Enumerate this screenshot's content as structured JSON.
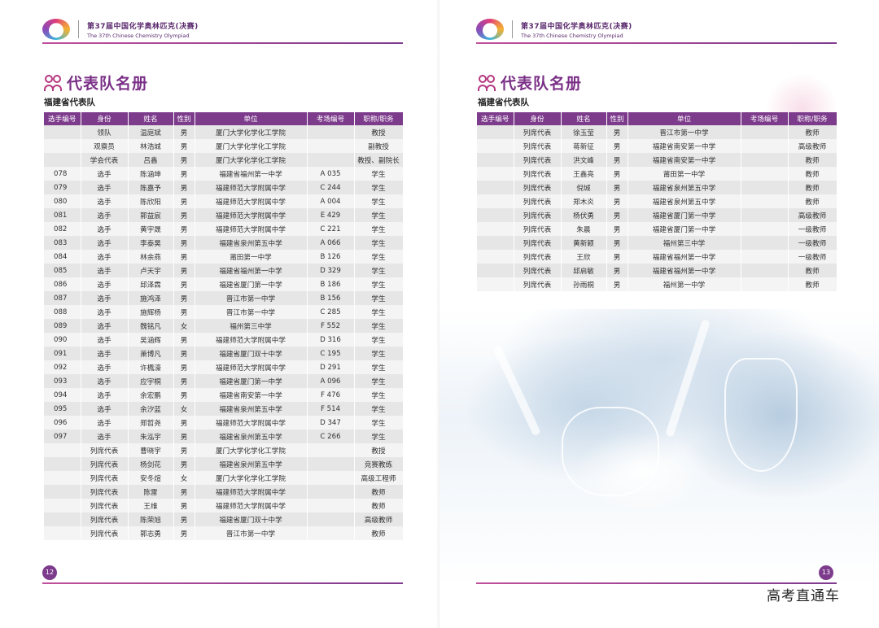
{
  "header": {
    "logo_text": "",
    "title_cn": "第37届中国化学奥林匹克(决赛)",
    "title_en": "The 37th Chinese Chemistry Olympiad"
  },
  "left_page": {
    "title": "代表队名册",
    "subtitle": "福建省代表队",
    "columns": [
      "选手编号",
      "身份",
      "姓名",
      "性别",
      "单位",
      "考场编号",
      "职称/职务"
    ],
    "rows": [
      [
        "",
        "领队",
        "温庭斌",
        "男",
        "厦门大学化学化工学院",
        "",
        "教授"
      ],
      [
        "",
        "观察员",
        "林浩城",
        "男",
        "厦门大学化学化工学院",
        "",
        "副教授"
      ],
      [
        "",
        "学会代表",
        "吕鑫",
        "男",
        "厦门大学化学化工学院",
        "",
        "教授、副院长"
      ],
      [
        "078",
        "选手",
        "陈涵坤",
        "男",
        "福建省福州第一中学",
        "A 035",
        "学生"
      ],
      [
        "079",
        "选手",
        "陈嘉予",
        "男",
        "福建师范大学附属中学",
        "C 244",
        "学生"
      ],
      [
        "080",
        "选手",
        "陈欣阳",
        "男",
        "福建师范大学附属中学",
        "A 004",
        "学生"
      ],
      [
        "081",
        "选手",
        "郭益宸",
        "男",
        "福建师范大学附属中学",
        "E 429",
        "学生"
      ],
      [
        "082",
        "选手",
        "黄宇晟",
        "男",
        "福建师范大学附属中学",
        "C 221",
        "学生"
      ],
      [
        "083",
        "选手",
        "李泰昊",
        "男",
        "福建省泉州第五中学",
        "A 066",
        "学生"
      ],
      [
        "084",
        "选手",
        "林余燕",
        "男",
        "莆田第一中学",
        "B 126",
        "学生"
      ],
      [
        "085",
        "选手",
        "卢天宇",
        "男",
        "福建省福州第一中学",
        "D 329",
        "学生"
      ],
      [
        "086",
        "选手",
        "邱泽霖",
        "男",
        "福建省厦门第一中学",
        "B 186",
        "学生"
      ],
      [
        "087",
        "选手",
        "施鸿泽",
        "男",
        "晋江市第一中学",
        "B 156",
        "学生"
      ],
      [
        "088",
        "选手",
        "施辉杨",
        "男",
        "晋江市第一中学",
        "C 285",
        "学生"
      ],
      [
        "089",
        "选手",
        "魏铭凡",
        "女",
        "福州第三中学",
        "F 552",
        "学生"
      ],
      [
        "090",
        "选手",
        "吴涵辉",
        "男",
        "福建师范大学附属中学",
        "D 316",
        "学生"
      ],
      [
        "091",
        "选手",
        "萧博凡",
        "男",
        "福建省厦门双十中学",
        "C 195",
        "学生"
      ],
      [
        "092",
        "选手",
        "许楓濠",
        "男",
        "福建师范大学附属中学",
        "D 291",
        "学生"
      ],
      [
        "093",
        "选手",
        "应宇桐",
        "男",
        "福建省厦门第一中学",
        "A 096",
        "学生"
      ],
      [
        "094",
        "选手",
        "余宏鹏",
        "男",
        "福建省南安第一中学",
        "F 476",
        "学生"
      ],
      [
        "095",
        "选手",
        "余汐蓝",
        "女",
        "福建省泉州第五中学",
        "F 514",
        "学生"
      ],
      [
        "096",
        "选手",
        "郑哲尧",
        "男",
        "福建师范大学附属中学",
        "D 347",
        "学生"
      ],
      [
        "097",
        "选手",
        "朱泓宇",
        "男",
        "福建省泉州第五中学",
        "C 266",
        "学生"
      ],
      [
        "",
        "列席代表",
        "曹晓宇",
        "男",
        "厦门大学化学化工学院",
        "",
        "教授"
      ],
      [
        "",
        "列席代表",
        "杨剑花",
        "男",
        "福建省泉州第五中学",
        "",
        "竞赛教练"
      ],
      [
        "",
        "列席代表",
        "安冬煊",
        "女",
        "厦门大学化学化工学院",
        "",
        "高级工程师"
      ],
      [
        "",
        "列席代表",
        "陈雷",
        "男",
        "福建师范大学附属中学",
        "",
        "教师"
      ],
      [
        "",
        "列席代表",
        "王维",
        "男",
        "福建师范大学附属中学",
        "",
        "教师"
      ],
      [
        "",
        "列席代表",
        "陈荣旭",
        "男",
        "福建省厦门双十中学",
        "",
        "高级教师"
      ],
      [
        "",
        "列席代表",
        "郭志勇",
        "男",
        "晋江市第一中学",
        "",
        "教师"
      ]
    ],
    "page_number": "12"
  },
  "right_page": {
    "title": "代表队名册",
    "subtitle": "福建省代表队",
    "columns": [
      "选手编号",
      "身份",
      "姓名",
      "性别",
      "单位",
      "考场编号",
      "职称/职务"
    ],
    "rows": [
      [
        "",
        "列席代表",
        "徐玉莹",
        "男",
        "晋江市第一中学",
        "",
        "教师"
      ],
      [
        "",
        "列席代表",
        "蒋新征",
        "男",
        "福建省南安第一中学",
        "",
        "高级教师"
      ],
      [
        "",
        "列席代表",
        "洪文峰",
        "男",
        "福建省南安第一中学",
        "",
        "教师"
      ],
      [
        "",
        "列席代表",
        "王鑫亮",
        "男",
        "莆田第一中学",
        "",
        "教师"
      ],
      [
        "",
        "列席代表",
        "倪城",
        "男",
        "福建省泉州第五中学",
        "",
        "教师"
      ],
      [
        "",
        "列席代表",
        "郑木炎",
        "男",
        "福建省泉州第五中学",
        "",
        "教师"
      ],
      [
        "",
        "列席代表",
        "杨伏勇",
        "男",
        "福建省厦门第一中学",
        "",
        "高级教师"
      ],
      [
        "",
        "列席代表",
        "朱晨",
        "男",
        "福建省厦门第一中学",
        "",
        "一级教师"
      ],
      [
        "",
        "列席代表",
        "黄新颖",
        "男",
        "福州第三中学",
        "",
        "一级教师"
      ],
      [
        "",
        "列席代表",
        "王欣",
        "男",
        "福建省福州第一中学",
        "",
        "一级教师"
      ],
      [
        "",
        "列席代表",
        "邱启敏",
        "男",
        "福建省福州第一中学",
        "",
        "教师"
      ],
      [
        "",
        "列席代表",
        "孙雨桐",
        "男",
        "福州第一中学",
        "",
        "教师"
      ]
    ],
    "page_number": "13"
  },
  "watermark": "高考直通车",
  "colors": {
    "accent": "#7d3b8c",
    "title": "#7a2f86",
    "row_odd": "#e6e6e6",
    "row_even": "#f4f4f4"
  }
}
